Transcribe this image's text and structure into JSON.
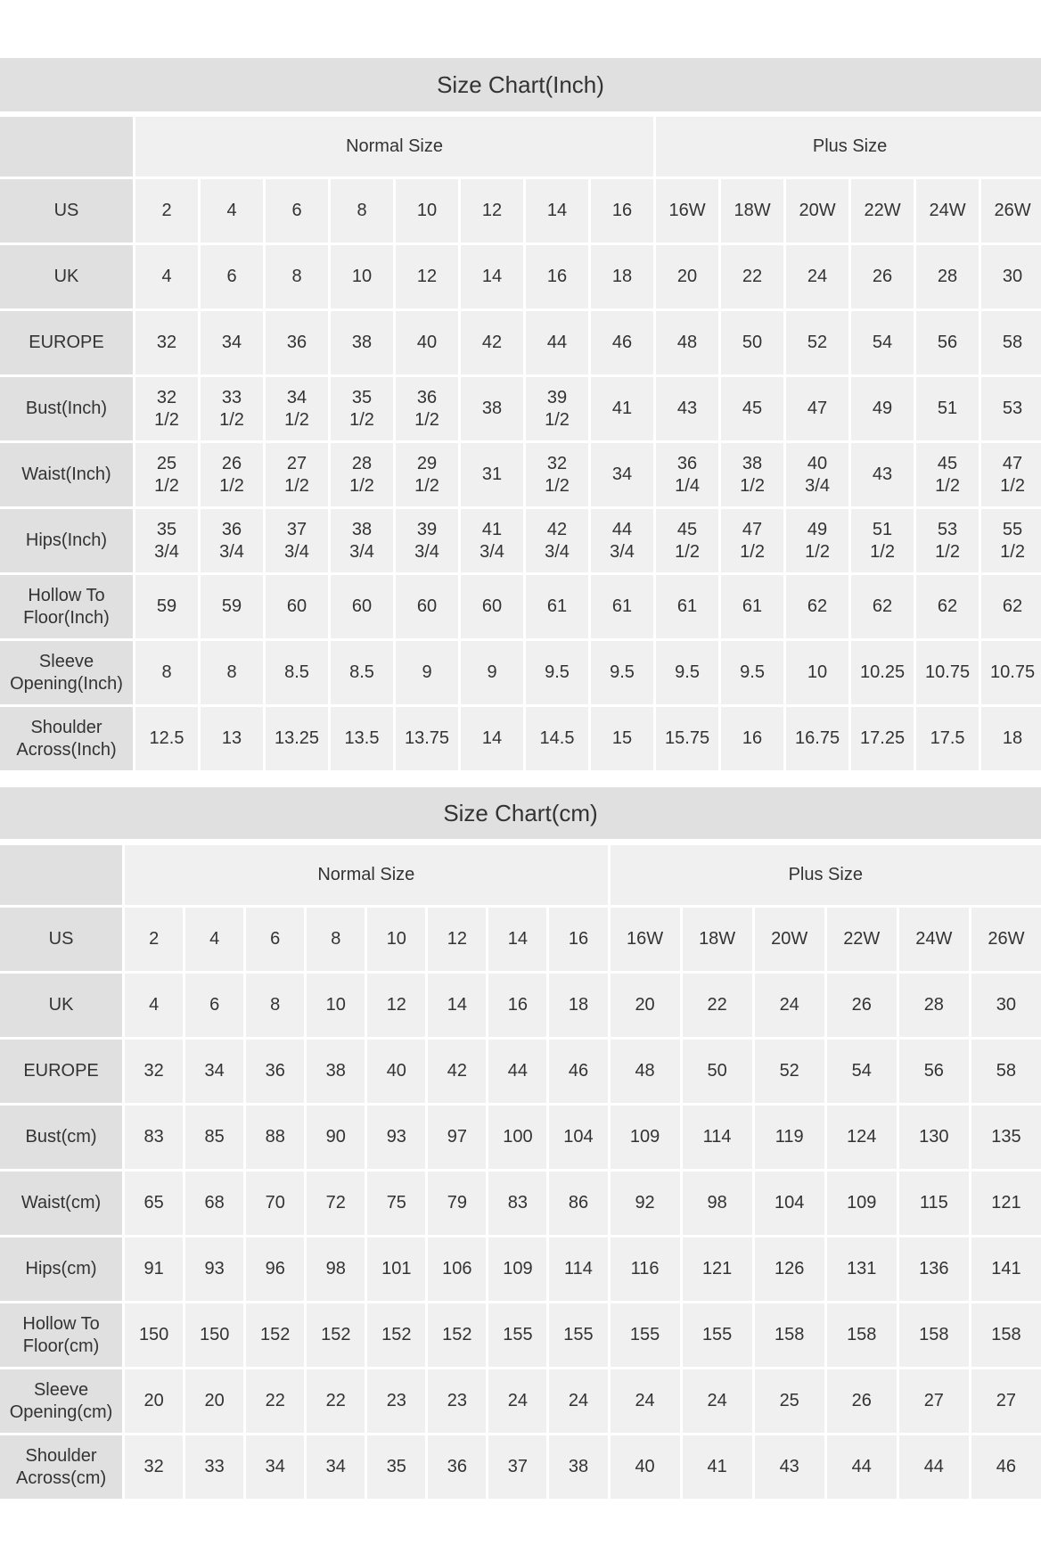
{
  "inch": {
    "title": "Size Chart(Inch)",
    "groups": [
      "Normal Size",
      "Plus Size"
    ],
    "rows": [
      {
        "label": "US",
        "values": [
          "2",
          "4",
          "6",
          "8",
          "10",
          "12",
          "14",
          "16",
          "16W",
          "18W",
          "20W",
          "22W",
          "24W",
          "26W"
        ]
      },
      {
        "label": "UK",
        "values": [
          "4",
          "6",
          "8",
          "10",
          "12",
          "14",
          "16",
          "18",
          "20",
          "22",
          "24",
          "26",
          "28",
          "30"
        ]
      },
      {
        "label": "EUROPE",
        "values": [
          "32",
          "34",
          "36",
          "38",
          "40",
          "42",
          "44",
          "46",
          "48",
          "50",
          "52",
          "54",
          "56",
          "58"
        ]
      },
      {
        "label": "Bust(Inch)",
        "values": [
          "32 1/2",
          "33 1/2",
          "34 1/2",
          "35 1/2",
          "36 1/2",
          "38",
          "39 1/2",
          "41",
          "43",
          "45",
          "47",
          "49",
          "51",
          "53"
        ]
      },
      {
        "label": "Waist(Inch)",
        "values": [
          "25 1/2",
          "26 1/2",
          "27 1/2",
          "28 1/2",
          "29 1/2",
          "31",
          "32 1/2",
          "34",
          "36 1/4",
          "38 1/2",
          "40 3/4",
          "43",
          "45 1/2",
          "47 1/2"
        ]
      },
      {
        "label": "Hips(Inch)",
        "values": [
          "35 3/4",
          "36 3/4",
          "37 3/4",
          "38 3/4",
          "39 3/4",
          "41 3/4",
          "42 3/4",
          "44 3/4",
          "45 1/2",
          "47 1/2",
          "49 1/2",
          "51 1/2",
          "53 1/2",
          "55 1/2"
        ]
      },
      {
        "label": "Hollow To Floor(Inch)",
        "values": [
          "59",
          "59",
          "60",
          "60",
          "60",
          "60",
          "61",
          "61",
          "61",
          "61",
          "62",
          "62",
          "62",
          "62"
        ]
      },
      {
        "label": "Sleeve Opening(Inch)",
        "values": [
          "8",
          "8",
          "8.5",
          "8.5",
          "9",
          "9",
          "9.5",
          "9.5",
          "9.5",
          "9.5",
          "10",
          "10.25",
          "10.75",
          "10.75"
        ]
      },
      {
        "label": "Shoulder Across(Inch)",
        "values": [
          "12.5",
          "13",
          "13.25",
          "13.5",
          "13.75",
          "14",
          "14.5",
          "15",
          "15.75",
          "16",
          "16.75",
          "17.25",
          "17.5",
          "18"
        ]
      }
    ]
  },
  "cm": {
    "title": "Size Chart(cm)",
    "groups": [
      "Normal Size",
      "Plus Size"
    ],
    "rows": [
      {
        "label": "US",
        "values": [
          "2",
          "4",
          "6",
          "8",
          "10",
          "12",
          "14",
          "16",
          "16W",
          "18W",
          "20W",
          "22W",
          "24W",
          "26W"
        ]
      },
      {
        "label": "UK",
        "values": [
          "4",
          "6",
          "8",
          "10",
          "12",
          "14",
          "16",
          "18",
          "20",
          "22",
          "24",
          "26",
          "28",
          "30"
        ]
      },
      {
        "label": "EUROPE",
        "values": [
          "32",
          "34",
          "36",
          "38",
          "40",
          "42",
          "44",
          "46",
          "48",
          "50",
          "52",
          "54",
          "56",
          "58"
        ]
      },
      {
        "label": "Bust(cm)",
        "values": [
          "83",
          "85",
          "88",
          "90",
          "93",
          "97",
          "100",
          "104",
          "109",
          "114",
          "119",
          "124",
          "130",
          "135"
        ]
      },
      {
        "label": "Waist(cm)",
        "values": [
          "65",
          "68",
          "70",
          "72",
          "75",
          "79",
          "83",
          "86",
          "92",
          "98",
          "104",
          "109",
          "115",
          "121"
        ]
      },
      {
        "label": "Hips(cm)",
        "values": [
          "91",
          "93",
          "96",
          "98",
          "101",
          "106",
          "109",
          "114",
          "116",
          "121",
          "126",
          "131",
          "136",
          "141"
        ]
      },
      {
        "label": "Hollow To Floor(cm)",
        "values": [
          "150",
          "150",
          "152",
          "152",
          "152",
          "152",
          "155",
          "155",
          "155",
          "155",
          "158",
          "158",
          "158",
          "158"
        ]
      },
      {
        "label": "Sleeve Opening(cm)",
        "values": [
          "20",
          "20",
          "22",
          "22",
          "23",
          "23",
          "24",
          "24",
          "24",
          "24",
          "25",
          "26",
          "27",
          "27"
        ]
      },
      {
        "label": "Shoulder Across(cm)",
        "values": [
          "32",
          "33",
          "34",
          "34",
          "35",
          "36",
          "37",
          "38",
          "40",
          "41",
          "43",
          "44",
          "44",
          "46"
        ]
      }
    ]
  }
}
